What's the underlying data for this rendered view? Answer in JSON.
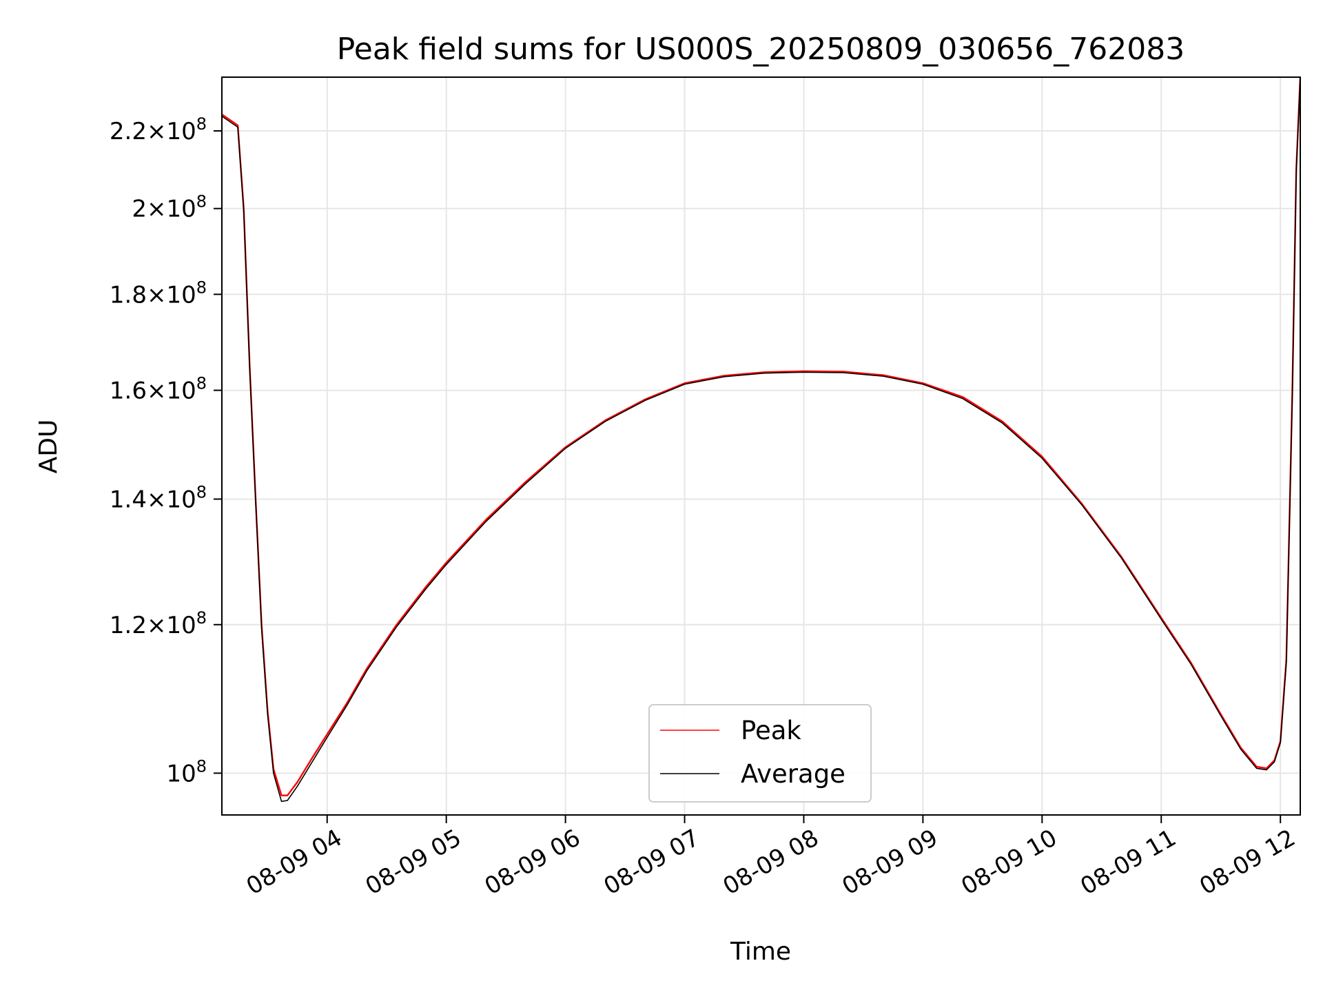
{
  "chart_data": {
    "type": "line",
    "title": "Peak field sums for US000S_20250809_030656_762083",
    "xlabel": "Time",
    "ylabel": "ADU",
    "y_scale": "log",
    "xlim": [
      "2025-08-09 03:07",
      "2025-08-09 12:10"
    ],
    "ylim": [
      95000000,
      235000000
    ],
    "grid": true,
    "legend_position": "lower-center",
    "x_ticks": [
      {
        "value": "2025-08-09 04:00",
        "label": "08-09 04"
      },
      {
        "value": "2025-08-09 05:00",
        "label": "08-09 05"
      },
      {
        "value": "2025-08-09 06:00",
        "label": "08-09 06"
      },
      {
        "value": "2025-08-09 07:00",
        "label": "08-09 07"
      },
      {
        "value": "2025-08-09 08:00",
        "label": "08-09 08"
      },
      {
        "value": "2025-08-09 09:00",
        "label": "08-09 09"
      },
      {
        "value": "2025-08-09 10:00",
        "label": "08-09 10"
      },
      {
        "value": "2025-08-09 11:00",
        "label": "08-09 11"
      },
      {
        "value": "2025-08-09 12:00",
        "label": "08-09 12"
      }
    ],
    "y_ticks": [
      {
        "value": 100000000,
        "mantissa": "",
        "exponent": "8"
      },
      {
        "value": 120000000,
        "mantissa": "1.2",
        "exponent": "8"
      },
      {
        "value": 140000000,
        "mantissa": "1.4",
        "exponent": "8"
      },
      {
        "value": 160000000,
        "mantissa": "1.6",
        "exponent": "8"
      },
      {
        "value": 180000000,
        "mantissa": "1.8",
        "exponent": "8"
      },
      {
        "value": 200000000,
        "mantissa": "2",
        "exponent": "8"
      },
      {
        "value": 220000000,
        "mantissa": "2.2",
        "exponent": "8"
      }
    ],
    "series": [
      {
        "name": "Peak",
        "color": "#ff0000",
        "points": [
          [
            "2025-08-09 03:07",
            224500000
          ],
          [
            "2025-08-09 03:11",
            223000000
          ],
          [
            "2025-08-09 03:15",
            221500000
          ],
          [
            "2025-08-09 03:18",
            200000000
          ],
          [
            "2025-08-09 03:21",
            165000000
          ],
          [
            "2025-08-09 03:24",
            140000000
          ],
          [
            "2025-08-09 03:27",
            120000000
          ],
          [
            "2025-08-09 03:30",
            108000000
          ],
          [
            "2025-08-09 03:33",
            100500000
          ],
          [
            "2025-08-09 03:37",
            97300000
          ],
          [
            "2025-08-09 03:40",
            97300000
          ],
          [
            "2025-08-09 03:45",
            98900000
          ],
          [
            "2025-08-09 03:52",
            101700000
          ],
          [
            "2025-08-09 04:00",
            104900000
          ],
          [
            "2025-08-09 04:10",
            109000000
          ],
          [
            "2025-08-09 04:20",
            113700000
          ],
          [
            "2025-08-09 04:35",
            120000000
          ],
          [
            "2025-08-09 04:50",
            125800000
          ],
          [
            "2025-08-09 05:00",
            129500000
          ],
          [
            "2025-08-09 05:20",
            136500000
          ],
          [
            "2025-08-09 05:40",
            143000000
          ],
          [
            "2025-08-09 06:00",
            149200000
          ],
          [
            "2025-08-09 06:20",
            154200000
          ],
          [
            "2025-08-09 06:40",
            158200000
          ],
          [
            "2025-08-09 07:00",
            161400000
          ],
          [
            "2025-08-09 07:20",
            162900000
          ],
          [
            "2025-08-09 07:40",
            163600000
          ],
          [
            "2025-08-09 08:00",
            163800000
          ],
          [
            "2025-08-09 08:20",
            163700000
          ],
          [
            "2025-08-09 08:40",
            163000000
          ],
          [
            "2025-08-09 09:00",
            161400000
          ],
          [
            "2025-08-09 09:20",
            158700000
          ],
          [
            "2025-08-09 09:40",
            154000000
          ],
          [
            "2025-08-09 10:00",
            147500000
          ],
          [
            "2025-08-09 10:20",
            139200000
          ],
          [
            "2025-08-09 10:40",
            130400000
          ],
          [
            "2025-08-09 11:00",
            121000000
          ],
          [
            "2025-08-09 11:15",
            114500000
          ],
          [
            "2025-08-09 11:30",
            107500000
          ],
          [
            "2025-08-09 11:40",
            103200000
          ],
          [
            "2025-08-09 11:48",
            100800000
          ],
          [
            "2025-08-09 11:53",
            100600000
          ],
          [
            "2025-08-09 11:57",
            101600000
          ],
          [
            "2025-08-09 12:00",
            104000000
          ],
          [
            "2025-08-09 12:03",
            115000000
          ],
          [
            "2025-08-09 12:06",
            160000000
          ],
          [
            "2025-08-09 12:08",
            210000000
          ],
          [
            "2025-08-09 12:10",
            235000000
          ]
        ]
      },
      {
        "name": "Average",
        "color": "#000000",
        "points": [
          [
            "2025-08-09 03:07",
            224000000
          ],
          [
            "2025-08-09 03:11",
            222500000
          ],
          [
            "2025-08-09 03:15",
            221000000
          ],
          [
            "2025-08-09 03:18",
            199500000
          ],
          [
            "2025-08-09 03:21",
            164500000
          ],
          [
            "2025-08-09 03:24",
            139500000
          ],
          [
            "2025-08-09 03:27",
            119500000
          ],
          [
            "2025-08-09 03:30",
            107500000
          ],
          [
            "2025-08-09 03:33",
            100000000
          ],
          [
            "2025-08-09 03:37",
            96600000
          ],
          [
            "2025-08-09 03:40",
            96700000
          ],
          [
            "2025-08-09 03:45",
            98400000
          ],
          [
            "2025-08-09 03:52",
            101200000
          ],
          [
            "2025-08-09 04:00",
            104500000
          ],
          [
            "2025-08-09 04:10",
            108700000
          ],
          [
            "2025-08-09 04:20",
            113400000
          ],
          [
            "2025-08-09 04:35",
            119700000
          ],
          [
            "2025-08-09 04:50",
            125500000
          ],
          [
            "2025-08-09 05:00",
            129200000
          ],
          [
            "2025-08-09 05:20",
            136200000
          ],
          [
            "2025-08-09 05:40",
            142700000
          ],
          [
            "2025-08-09 06:00",
            149000000
          ],
          [
            "2025-08-09 06:20",
            154000000
          ],
          [
            "2025-08-09 06:40",
            158000000
          ],
          [
            "2025-08-09 07:00",
            161200000
          ],
          [
            "2025-08-09 07:20",
            162700000
          ],
          [
            "2025-08-09 07:40",
            163400000
          ],
          [
            "2025-08-09 08:00",
            163600000
          ],
          [
            "2025-08-09 08:20",
            163500000
          ],
          [
            "2025-08-09 08:40",
            162800000
          ],
          [
            "2025-08-09 09:00",
            161200000
          ],
          [
            "2025-08-09 09:20",
            158400000
          ],
          [
            "2025-08-09 09:40",
            153700000
          ],
          [
            "2025-08-09 10:00",
            147200000
          ],
          [
            "2025-08-09 10:20",
            139000000
          ],
          [
            "2025-08-09 10:40",
            130200000
          ],
          [
            "2025-08-09 11:00",
            120800000
          ],
          [
            "2025-08-09 11:15",
            114300000
          ],
          [
            "2025-08-09 11:30",
            107300000
          ],
          [
            "2025-08-09 11:40",
            103000000
          ],
          [
            "2025-08-09 11:48",
            100600000
          ],
          [
            "2025-08-09 11:53",
            100400000
          ],
          [
            "2025-08-09 11:57",
            101400000
          ],
          [
            "2025-08-09 12:00",
            103800000
          ],
          [
            "2025-08-09 12:03",
            114500000
          ],
          [
            "2025-08-09 12:06",
            159000000
          ],
          [
            "2025-08-09 12:08",
            209000000
          ],
          [
            "2025-08-09 12:10",
            235000000
          ]
        ]
      }
    ]
  }
}
